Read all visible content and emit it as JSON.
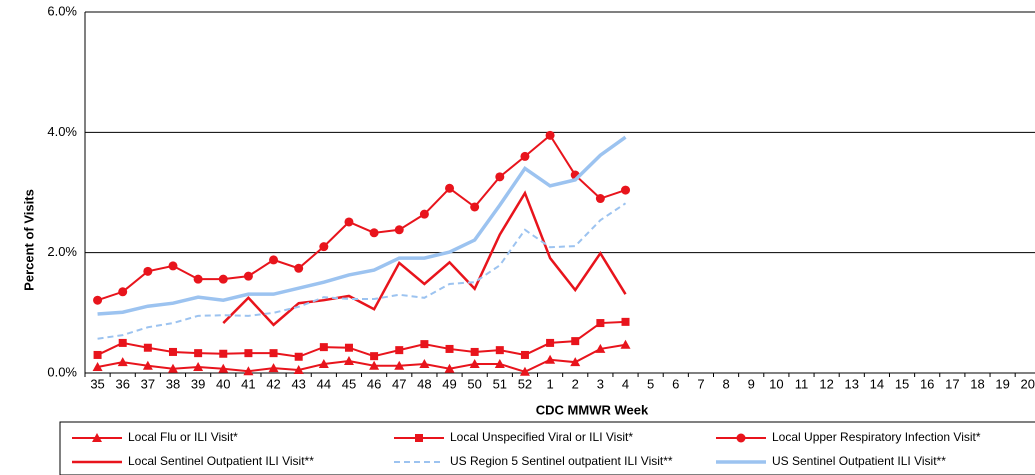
{
  "chart_data": {
    "type": "line",
    "y_label": "Percent of Visits",
    "x_label": "CDC MMWR Week",
    "categories": [
      "35",
      "36",
      "37",
      "38",
      "39",
      "40",
      "41",
      "42",
      "43",
      "44",
      "45",
      "46",
      "47",
      "48",
      "49",
      "50",
      "51",
      "52",
      "1",
      "2",
      "3",
      "4",
      "5",
      "6",
      "7",
      "8",
      "9",
      "10",
      "11",
      "12",
      "13",
      "14",
      "15",
      "16",
      "17",
      "18",
      "19",
      "20"
    ],
    "ylim": [
      0,
      6
    ],
    "yticks": [
      {
        "value": 0,
        "label": "0.0%"
      },
      {
        "value": 2,
        "label": "2.0%"
      },
      {
        "value": 4,
        "label": "4.0%"
      },
      {
        "value": 6,
        "label": "6.0%"
      }
    ],
    "grid": true,
    "series": [
      {
        "name": "Local Flu or ILI Visit*",
        "color": "#e8141c",
        "marker": "triangle",
        "dash": false,
        "width": 2,
        "values": [
          0.1,
          0.18,
          0.12,
          0.07,
          0.1,
          0.07,
          0.03,
          0.08,
          0.05,
          0.15,
          0.2,
          0.12,
          0.12,
          0.15,
          0.07,
          0.15,
          0.15,
          0.02,
          0.22,
          0.18,
          0.4,
          0.47,
          null,
          null,
          null,
          null,
          null,
          null,
          null,
          null,
          null,
          null,
          null,
          null,
          null,
          null,
          null,
          null
        ]
      },
      {
        "name": "Local Unspecified Viral or ILI Visit*",
        "color": "#e8141c",
        "marker": "square",
        "dash": false,
        "width": 2,
        "values": [
          0.3,
          0.5,
          0.42,
          0.35,
          0.33,
          0.32,
          0.33,
          0.33,
          0.27,
          0.43,
          0.42,
          0.28,
          0.38,
          0.48,
          0.4,
          0.35,
          0.38,
          0.3,
          0.5,
          0.53,
          0.83,
          0.85,
          null,
          null,
          null,
          null,
          null,
          null,
          null,
          null,
          null,
          null,
          null,
          null,
          null,
          null,
          null,
          null
        ]
      },
      {
        "name": "Local Upper Respiratory Infection Visit*",
        "color": "#e8141c",
        "marker": "circle",
        "dash": false,
        "width": 2,
        "values": [
          1.21,
          1.35,
          1.69,
          1.78,
          1.56,
          1.56,
          1.61,
          1.88,
          1.74,
          2.1,
          2.51,
          2.33,
          2.38,
          2.64,
          3.07,
          2.76,
          3.26,
          3.6,
          3.95,
          3.29,
          2.9,
          3.04,
          null,
          null,
          null,
          null,
          null,
          null,
          null,
          null,
          null,
          null,
          null,
          null,
          null,
          null,
          null,
          null
        ]
      },
      {
        "name": "Local Sentinel Outpatient ILI Visit**",
        "color": "#e8141c",
        "marker": "none",
        "dash": false,
        "width": 2.5,
        "values": [
          null,
          null,
          null,
          null,
          null,
          0.83,
          1.25,
          0.8,
          1.16,
          1.21,
          1.28,
          1.06,
          1.83,
          1.48,
          1.84,
          1.4,
          2.3,
          2.99,
          1.91,
          1.38,
          1.99,
          1.31,
          null,
          null,
          null,
          null,
          null,
          null,
          null,
          null,
          null,
          null,
          null,
          null,
          null,
          null,
          null,
          null
        ]
      },
      {
        "name": "US Region 5 Sentinel outpatient ILI Visit**",
        "color": "#9cc3f0",
        "marker": "none",
        "dash": true,
        "width": 2,
        "values": [
          0.57,
          0.63,
          0.76,
          0.83,
          0.95,
          0.96,
          0.95,
          1.0,
          1.1,
          1.26,
          1.23,
          1.23,
          1.3,
          1.25,
          1.48,
          1.51,
          1.79,
          2.38,
          2.09,
          2.11,
          2.54,
          2.82,
          null,
          null,
          null,
          null,
          null,
          null,
          null,
          null,
          null,
          null,
          null,
          null,
          null,
          null,
          null,
          null
        ]
      },
      {
        "name": "US Sentinel Outpatient ILI Visit**",
        "color": "#9cc3f0",
        "marker": "none",
        "dash": false,
        "width": 3.5,
        "values": [
          0.98,
          1.01,
          1.11,
          1.16,
          1.26,
          1.21,
          1.31,
          1.31,
          1.41,
          1.51,
          1.63,
          1.71,
          1.91,
          1.91,
          2.01,
          2.21,
          2.79,
          3.4,
          3.11,
          3.21,
          3.62,
          3.92,
          null,
          null,
          null,
          null,
          null,
          null,
          null,
          null,
          null,
          null,
          null,
          null,
          null,
          null,
          null,
          null
        ]
      }
    ]
  }
}
